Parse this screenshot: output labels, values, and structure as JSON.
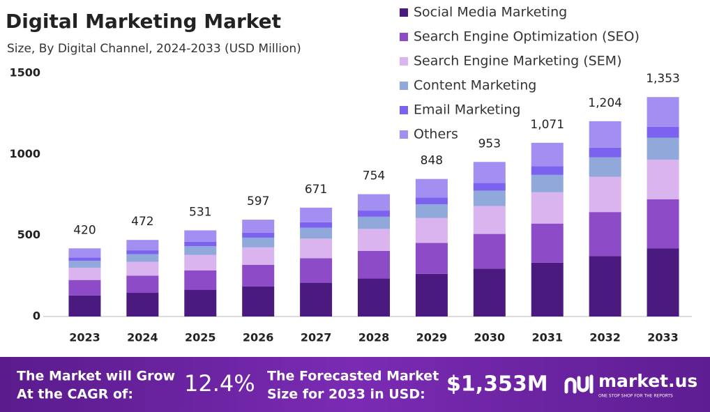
{
  "chart_data": {
    "type": "stacked-bar",
    "title": "Digital Marketing Market",
    "subtitle": "Size, By Digital Channel, 2024-2033 (USD Million)",
    "categories": [
      "2023",
      "2024",
      "2025",
      "2026",
      "2027",
      "2028",
      "2029",
      "2030",
      "2031",
      "2032",
      "2033"
    ],
    "series": [
      {
        "name": "Social Media Marketing",
        "color": "#4a1a7e",
        "values": [
          130,
          146,
          165,
          185,
          208,
          234,
          263,
          295,
          332,
          373,
          419
        ]
      },
      {
        "name": "Search Engine Optimization (SEO)",
        "color": "#8e4bc8",
        "values": [
          95,
          106,
          119,
          134,
          151,
          170,
          191,
          214,
          241,
          271,
          304
        ]
      },
      {
        "name": "Search Engine Marketing (SEM)",
        "color": "#dab4ee",
        "values": [
          76,
          85,
          96,
          107,
          121,
          136,
          153,
          172,
          193,
          217,
          244
        ]
      },
      {
        "name": "Content Marketing",
        "color": "#91a9da",
        "values": [
          42,
          47,
          53,
          60,
          67,
          75,
          85,
          95,
          107,
          120,
          135
        ]
      },
      {
        "name": "Email Marketing",
        "color": "#7b63f0",
        "values": [
          21,
          24,
          27,
          30,
          34,
          38,
          42,
          48,
          54,
          60,
          68
        ]
      },
      {
        "name": "Others",
        "color": "#a38ff2",
        "values": [
          56,
          64,
          71,
          81,
          90,
          101,
          114,
          129,
          144,
          163,
          183
        ]
      }
    ],
    "totals": [
      420,
      472,
      531,
      597,
      671,
      754,
      848,
      953,
      1071,
      1204,
      1353
    ],
    "total_labels": [
      "420",
      "472",
      "531",
      "597",
      "671",
      "754",
      "848",
      "953",
      "1,071",
      "1,204",
      "1,353"
    ],
    "ylim": [
      0,
      1500
    ],
    "yticks": [
      0,
      500,
      1000,
      1500
    ],
    "grid": false
  },
  "footer": {
    "cagr_text": [
      "The Market will Grow",
      "At the CAGR of:"
    ],
    "cagr_value": "12.4%",
    "forecast_text": [
      "The Forecasted Market",
      "Size for 2033 in USD:"
    ],
    "forecast_value": "$1,353M",
    "brand": "market.us",
    "tagline": "ONE STOP SHOP FOR THE REPORTS"
  }
}
